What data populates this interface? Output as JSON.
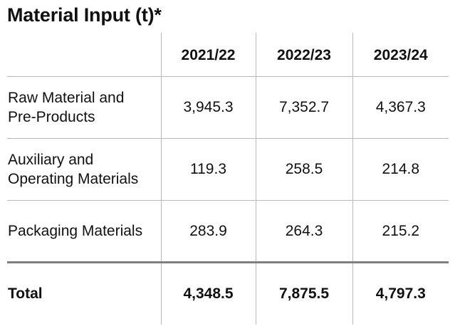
{
  "title": "Material Input (t)*",
  "table": {
    "headers": [
      "",
      "2021/22",
      "2022/23",
      "2023/24"
    ],
    "rows": [
      {
        "label_line1": "Raw Material and",
        "label_line2": "Pre-Products",
        "values": [
          "3,945.3",
          "7,352.7",
          "4,367.3"
        ]
      },
      {
        "label_line1": "Auxiliary and",
        "label_line2": "Operating Materials",
        "values": [
          "119.3",
          "258.5",
          "214.8"
        ]
      },
      {
        "label_line1": "Packaging Materials",
        "label_line2": "",
        "values": [
          "283.9",
          "264.3",
          "215.2"
        ]
      }
    ],
    "total": {
      "label": "Total",
      "values": [
        "4,348.5",
        "7,875.5",
        "4,797.3"
      ]
    }
  },
  "colors": {
    "text": "#111111",
    "grid": "#b9b9b9",
    "total_rule": "#7f7f7f"
  }
}
